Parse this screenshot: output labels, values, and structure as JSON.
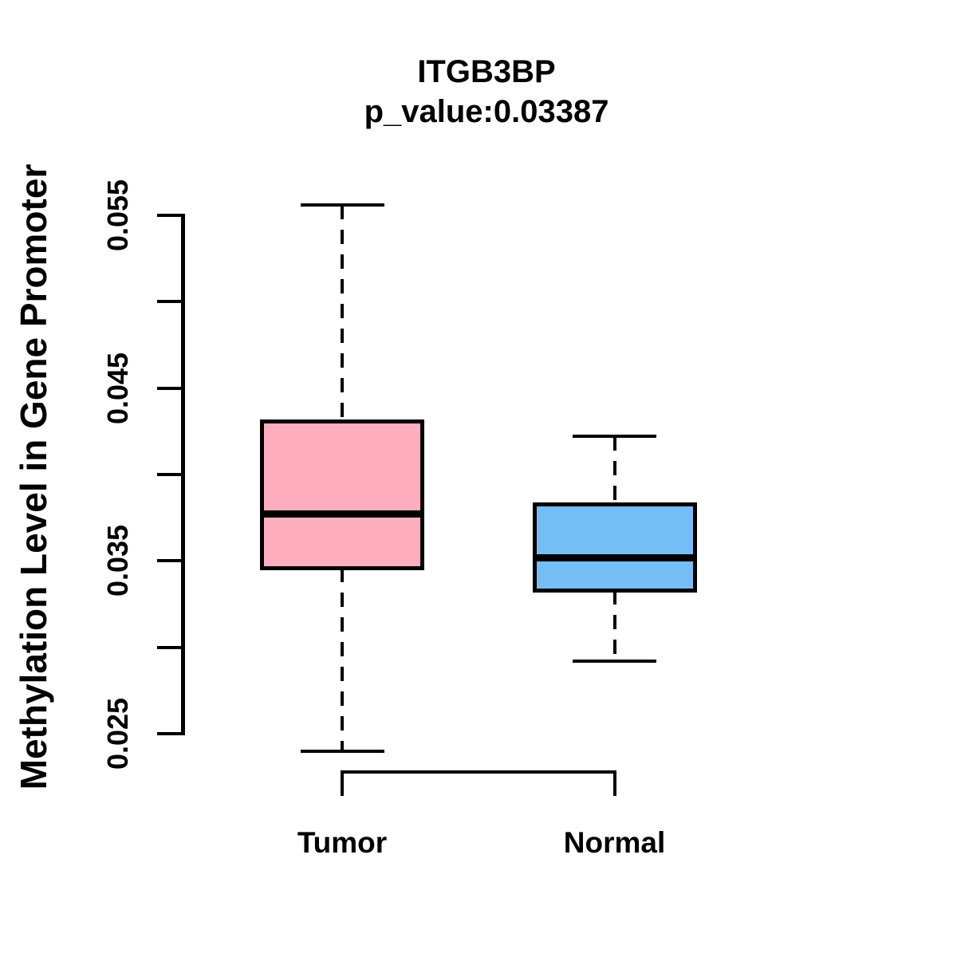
{
  "chart_data": {
    "type": "boxplot",
    "title": "ITGB3BP",
    "subtitle": "p_value:0.03387",
    "p_value": 0.03387,
    "ylabel": "Methylation Level in Gene Promoter",
    "xlabel": "",
    "ylim": [
      0.025,
      0.055
    ],
    "yticks": [
      0.025,
      0.03,
      0.035,
      0.04,
      0.045,
      0.05,
      0.055
    ],
    "ytick_labels": [
      "0.025",
      "0.035",
      "0.045",
      "0.055"
    ],
    "categories": [
      "Tumor",
      "Normal"
    ],
    "grid": false,
    "legend": "none",
    "groups": [
      {
        "label": "Tumor",
        "color": "#FFAEC0",
        "border_color": "#000000",
        "whisker_low": 0.024,
        "q1": 0.0346,
        "median": 0.0377,
        "q3": 0.0431,
        "whisker_high": 0.0556
      },
      {
        "label": "Normal",
        "color": "#75BEF5",
        "border_color": "#000000",
        "whisker_low": 0.0292,
        "q1": 0.0333,
        "median": 0.0352,
        "q3": 0.0383,
        "whisker_high": 0.0422
      }
    ]
  }
}
